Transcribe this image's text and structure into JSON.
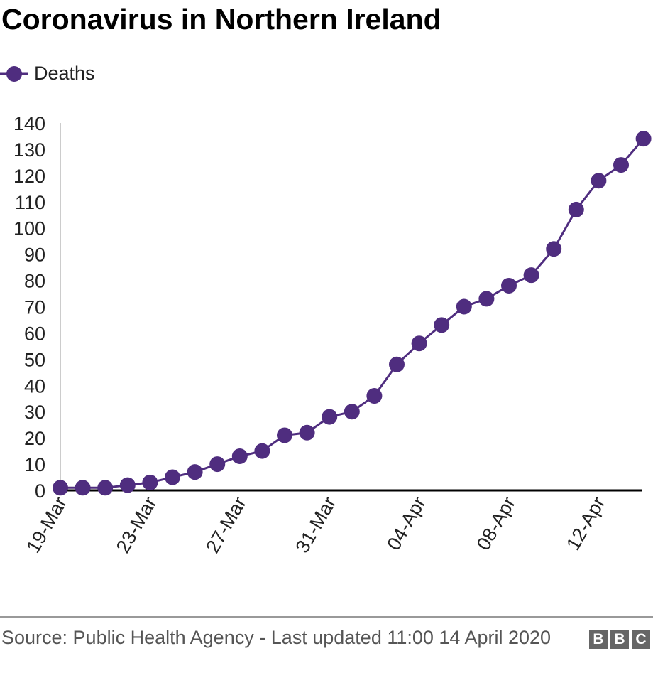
{
  "chart_data": {
    "type": "line",
    "title": "Coronavirus in Northern Ireland",
    "xlabel": "",
    "ylabel": "",
    "ylim": [
      0,
      140
    ],
    "yticks": [
      0,
      10,
      20,
      30,
      40,
      50,
      60,
      70,
      80,
      90,
      100,
      110,
      120,
      130,
      140
    ],
    "xtick_labels": [
      "19-Mar",
      "23-Mar",
      "27-Mar",
      "31-Mar",
      "04-Apr",
      "08-Apr",
      "12-Apr"
    ],
    "x": [
      "19-Mar",
      "20-Mar",
      "21-Mar",
      "22-Mar",
      "23-Mar",
      "24-Mar",
      "25-Mar",
      "26-Mar",
      "27-Mar",
      "28-Mar",
      "29-Mar",
      "30-Mar",
      "31-Mar",
      "01-Apr",
      "02-Apr",
      "03-Apr",
      "04-Apr",
      "05-Apr",
      "06-Apr",
      "07-Apr",
      "08-Apr",
      "09-Apr",
      "10-Apr",
      "11-Apr",
      "12-Apr",
      "13-Apr",
      "14-Apr"
    ],
    "series": [
      {
        "name": "Deaths",
        "color": "#4f2d7f",
        "values": [
          1,
          1,
          1,
          2,
          3,
          5,
          7,
          10,
          13,
          15,
          21,
          22,
          28,
          30,
          36,
          48,
          56,
          63,
          70,
          73,
          78,
          82,
          92,
          107,
          118,
          124,
          134
        ]
      }
    ],
    "legend": "top-left",
    "grid": false
  },
  "footer": {
    "source": "Source: Public Health Agency - Last updated 11:00 14 April 2020",
    "logo": [
      "B",
      "B",
      "C"
    ]
  }
}
